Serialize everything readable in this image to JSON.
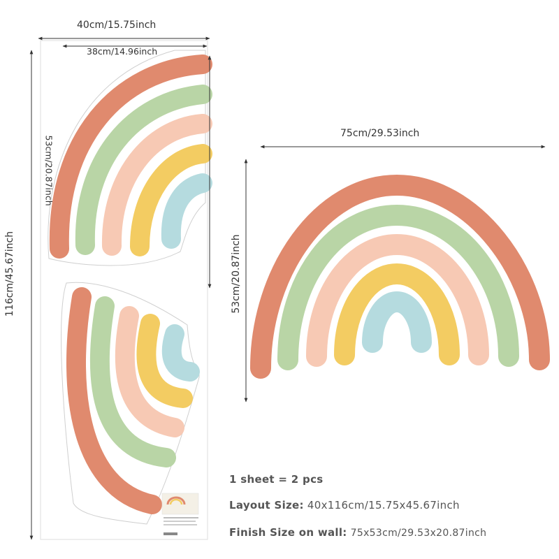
{
  "sheet": {
    "width_label": "40cm/15.75inch",
    "height_label": "116cm/45.67inch",
    "top_piece": {
      "width_label": "38cm/14.96inch",
      "height_label": "53cm/20.87inch"
    }
  },
  "finished": {
    "width_label": "75cm/29.53inch",
    "height_label": "53cm/20.87inch"
  },
  "specs": {
    "pieces": "1 sheet = 2 pcs",
    "layout_label": "Layout Size:",
    "layout_value": "40x116cm/15.75x45.67inch",
    "finish_label": "Finish Size on wall:",
    "finish_value": "75x53cm/29.53x20.87inch"
  },
  "colors": {
    "band_1": "#e08a6e",
    "band_2": "#b9d5a6",
    "band_3": "#f7c9b4",
    "band_4": "#f3cc62",
    "band_5": "#b5dbdf",
    "dimension_line": "#333333"
  }
}
